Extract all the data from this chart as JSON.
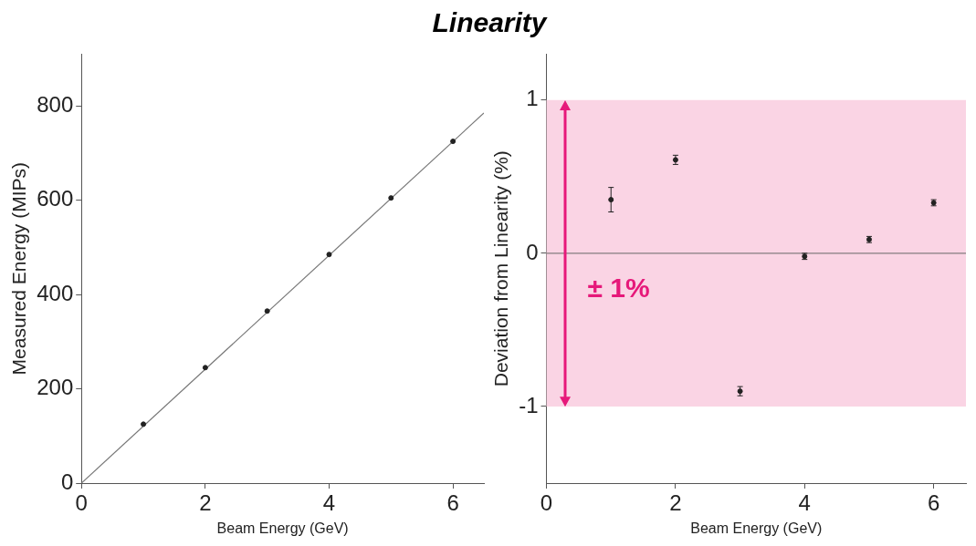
{
  "chart_data": [
    {
      "type": "scatter",
      "title": "Linearity",
      "xlabel": "Beam Energy (GeV)",
      "ylabel": "Measured Energy (MIPs)",
      "xlim": [
        0,
        6.5
      ],
      "ylim": [
        0,
        910
      ],
      "xticks": [
        0,
        2,
        4,
        6
      ],
      "yticks": [
        0,
        200,
        400,
        600,
        800
      ],
      "legend": false,
      "series": [
        {
          "color": "#222222",
          "marker": "circle",
          "x": [
            1,
            2,
            3,
            4,
            5,
            6
          ],
          "values": [
            125,
            245,
            365,
            485,
            605,
            725
          ]
        },
        {
          "type": "line",
          "marker": "none",
          "color": "#777777",
          "x": [
            0,
            6.5
          ],
          "values": [
            0,
            785
          ]
        }
      ]
    },
    {
      "type": "scatter",
      "xlabel": "Beam Energy (GeV)",
      "ylabel": "Deviation from Linearity (%)",
      "xlim": [
        0,
        6.5
      ],
      "ylim": [
        -1.5,
        1.3
      ],
      "xticks": [
        0,
        2,
        4,
        6
      ],
      "yticks": [
        -1,
        0,
        1
      ],
      "marker": "circle",
      "legend": false,
      "annotations": [
        "± 1%"
      ],
      "bands": [
        {
          "axis": "y",
          "from": -1,
          "to": 1,
          "color": "#fad4e4"
        }
      ],
      "ref_lines": [
        {
          "axis": "y",
          "value": 0,
          "color": "#666666"
        }
      ],
      "series": [
        {
          "color": "#222222",
          "x": [
            1,
            2,
            3,
            4,
            5,
            6
          ],
          "values": [
            0.35,
            0.61,
            -0.9,
            -0.02,
            0.09,
            0.33
          ],
          "errors": [
            0.08,
            0.03,
            0.03,
            0.02,
            0.02,
            0.02
          ]
        }
      ]
    }
  ]
}
